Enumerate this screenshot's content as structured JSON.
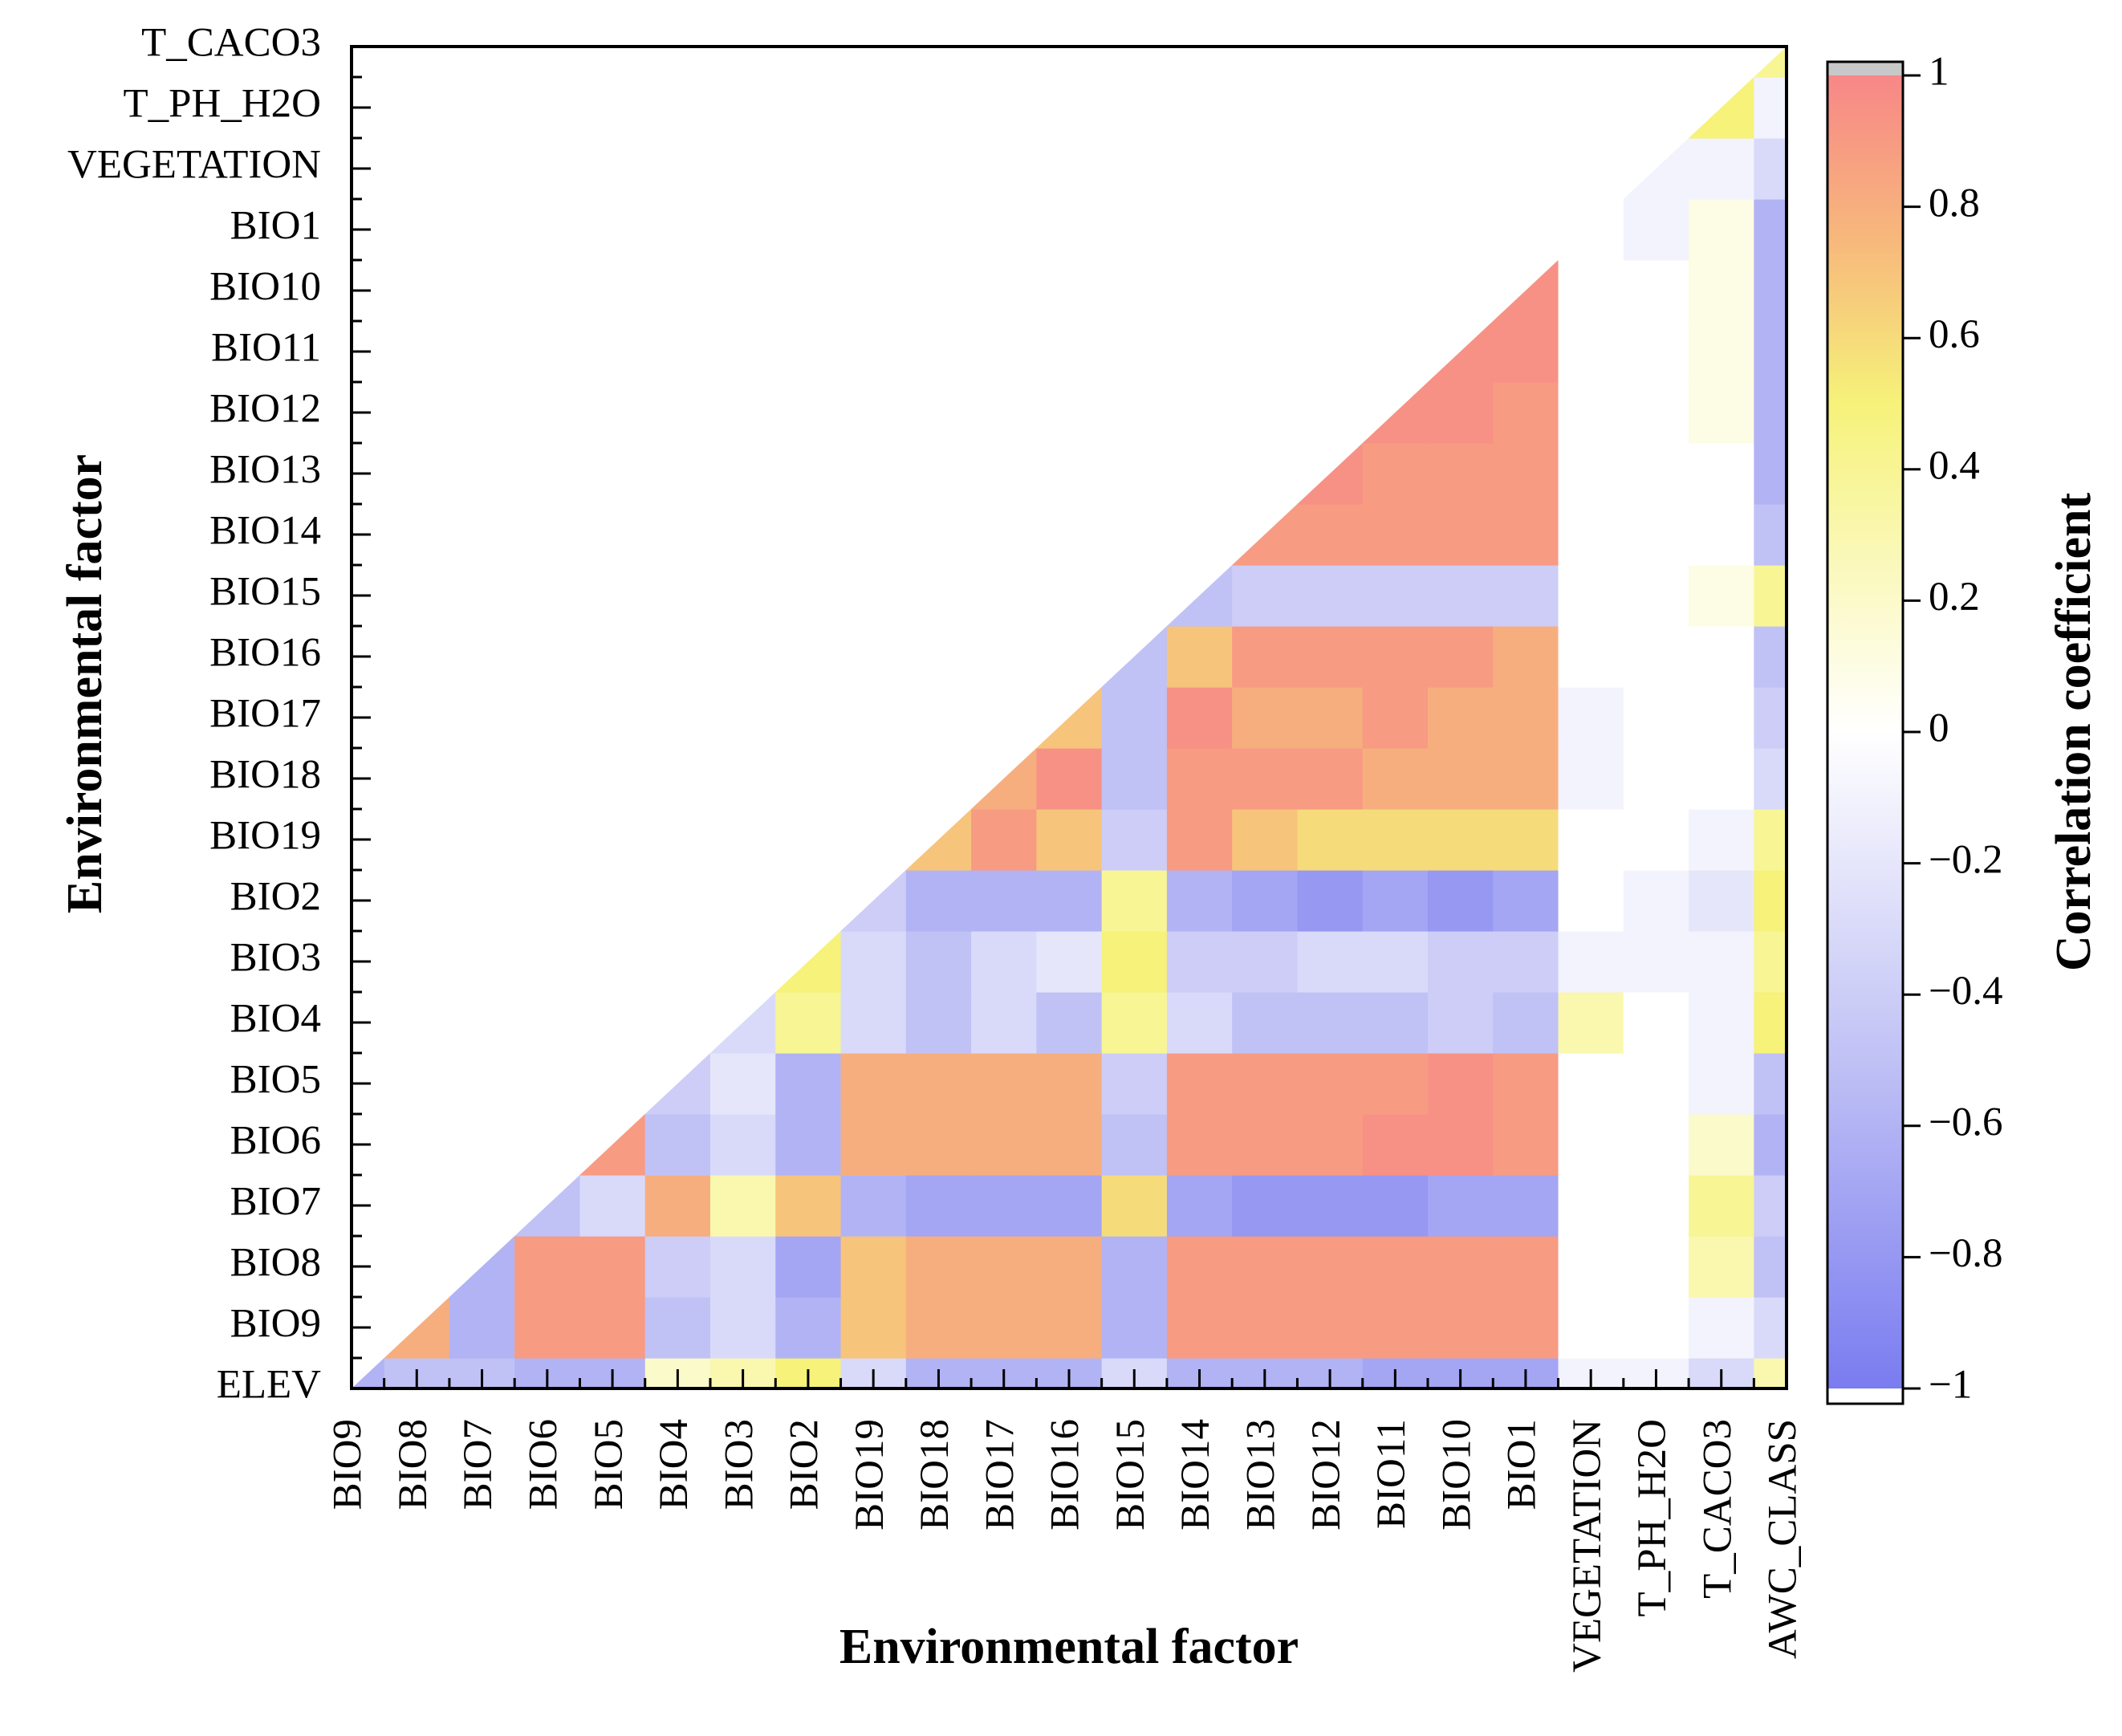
{
  "chart_data": {
    "type": "contour",
    "x_label": "Environmental factor",
    "y_label": "Environmental factor",
    "colorbar_label": "Correlation coefficient",
    "categories": [
      "BIO9",
      "BIO8",
      "BIO7",
      "BIO6",
      "BIO5",
      "BIO4",
      "BIO3",
      "BIO2",
      "BIO19",
      "BIO18",
      "BIO17",
      "BIO16",
      "BIO15",
      "BIO14",
      "BIO13",
      "BIO12",
      "BIO11",
      "BIO10",
      "BIO1",
      "VEGETATION",
      "T_PH_H2O",
      "T_CACO3",
      "AWC_CLASS"
    ],
    "y_categories": [
      "ELEV",
      "BIO9",
      "BIO8",
      "BIO7",
      "BIO6",
      "BIO5",
      "BIO4",
      "BIO3",
      "BIO2",
      "BIO19",
      "BIO18",
      "BIO17",
      "BIO16",
      "BIO15",
      "BIO14",
      "BIO13",
      "BIO12",
      "BIO11",
      "BIO10",
      "BIO1",
      "VEGETATION",
      "T_PH_H2O",
      "T_CACO3"
    ],
    "values": [
      [
        -0.6,
        -0.5,
        -0.5,
        -0.6,
        -0.6,
        0.2,
        0.3,
        0.5,
        -0.3,
        -0.6,
        -0.6,
        -0.6,
        -0.3,
        -0.6,
        -0.6,
        -0.6,
        -0.7,
        -0.7,
        -0.7,
        -0.1,
        -0.1,
        -0.3,
        0.3
      ],
      [
        null,
        0.8,
        -0.6,
        0.9,
        0.9,
        -0.5,
        -0.3,
        -0.6,
        0.7,
        0.8,
        0.8,
        0.8,
        -0.6,
        0.9,
        0.9,
        0.9,
        0.9,
        0.9,
        0.9,
        0,
        0,
        -0.1,
        -0.3
      ],
      [
        null,
        null,
        -0.6,
        0.9,
        0.9,
        -0.4,
        -0.3,
        -0.7,
        0.7,
        0.8,
        0.8,
        0.8,
        -0.6,
        0.9,
        0.9,
        0.9,
        0.9,
        0.9,
        0.9,
        0,
        0,
        0.3,
        -0.5
      ],
      [
        null,
        null,
        null,
        -0.5,
        -0.3,
        0.8,
        0.3,
        0.7,
        -0.6,
        -0.7,
        -0.7,
        -0.7,
        0.6,
        -0.7,
        -0.8,
        -0.8,
        -0.8,
        -0.7,
        -0.7,
        0,
        0,
        0.4,
        -0.4
      ],
      [
        null,
        null,
        null,
        null,
        0.9,
        -0.5,
        -0.3,
        -0.6,
        0.8,
        0.8,
        0.8,
        0.8,
        -0.5,
        0.9,
        0.9,
        0.9,
        0.95,
        0.95,
        0.9,
        0,
        0,
        0.2,
        -0.6
      ],
      [
        null,
        null,
        null,
        null,
        null,
        -0.4,
        -0.2,
        -0.6,
        0.8,
        0.8,
        0.8,
        0.8,
        -0.4,
        0.9,
        0.9,
        0.9,
        0.9,
        0.95,
        0.9,
        0,
        0,
        -0.1,
        -0.5
      ],
      [
        null,
        null,
        null,
        null,
        null,
        null,
        -0.3,
        0.4,
        -0.3,
        -0.5,
        -0.3,
        -0.5,
        0.4,
        -0.3,
        -0.5,
        -0.5,
        -0.5,
        -0.4,
        -0.5,
        0.3,
        0,
        -0.1,
        0.5
      ],
      [
        null,
        null,
        null,
        null,
        null,
        null,
        null,
        0.5,
        -0.3,
        -0.5,
        -0.3,
        -0.2,
        0.5,
        -0.4,
        -0.4,
        -0.3,
        -0.3,
        -0.4,
        -0.4,
        -0.1,
        -0.1,
        -0.1,
        0.4
      ],
      [
        null,
        null,
        null,
        null,
        null,
        null,
        null,
        null,
        -0.4,
        -0.6,
        -0.6,
        -0.6,
        0.4,
        -0.6,
        -0.7,
        -0.8,
        -0.7,
        -0.8,
        -0.7,
        0,
        -0.1,
        -0.2,
        0.5
      ],
      [
        null,
        null,
        null,
        null,
        null,
        null,
        null,
        null,
        null,
        0.7,
        0.9,
        0.7,
        -0.4,
        0.9,
        0.7,
        0.6,
        0.6,
        0.6,
        0.6,
        0,
        0,
        -0.1,
        0.4
      ],
      [
        null,
        null,
        null,
        null,
        null,
        null,
        null,
        null,
        null,
        null,
        0.8,
        0.95,
        -0.5,
        0.9,
        0.9,
        0.9,
        0.8,
        0.8,
        0.8,
        -0.1,
        0,
        0,
        -0.3
      ],
      [
        null,
        null,
        null,
        null,
        null,
        null,
        null,
        null,
        null,
        null,
        null,
        0.7,
        -0.5,
        0.95,
        0.8,
        0.8,
        0.9,
        0.8,
        0.8,
        -0.1,
        0,
        0,
        -0.4
      ],
      [
        null,
        null,
        null,
        null,
        null,
        null,
        null,
        null,
        null,
        null,
        null,
        null,
        -0.5,
        0.7,
        0.9,
        0.9,
        0.9,
        0.9,
        0.8,
        0,
        0,
        0,
        -0.5
      ],
      [
        null,
        null,
        null,
        null,
        null,
        null,
        null,
        null,
        null,
        null,
        null,
        null,
        null,
        -0.5,
        -0.4,
        -0.4,
        -0.4,
        -0.4,
        -0.4,
        0,
        0,
        0.1,
        0.4
      ],
      [
        null,
        null,
        null,
        null,
        null,
        null,
        null,
        null,
        null,
        null,
        null,
        null,
        null,
        null,
        0.9,
        0.9,
        0.9,
        0.9,
        0.9,
        0,
        0,
        0,
        -0.5
      ],
      [
        null,
        null,
        null,
        null,
        null,
        null,
        null,
        null,
        null,
        null,
        null,
        null,
        null,
        null,
        null,
        0.95,
        0.9,
        0.9,
        0.9,
        0,
        0,
        0,
        -0.6
      ],
      [
        null,
        null,
        null,
        null,
        null,
        null,
        null,
        null,
        null,
        null,
        null,
        null,
        null,
        null,
        null,
        null,
        0.95,
        0.95,
        0.9,
        0,
        0,
        0.1,
        -0.6
      ],
      [
        null,
        null,
        null,
        null,
        null,
        null,
        null,
        null,
        null,
        null,
        null,
        null,
        null,
        null,
        null,
        null,
        null,
        0.95,
        0.95,
        0,
        0,
        0.1,
        -0.6
      ],
      [
        null,
        null,
        null,
        null,
        null,
        null,
        null,
        null,
        null,
        null,
        null,
        null,
        null,
        null,
        null,
        null,
        null,
        null,
        0.95,
        0,
        0,
        0.1,
        -0.6
      ],
      [
        null,
        null,
        null,
        null,
        null,
        null,
        null,
        null,
        null,
        null,
        null,
        null,
        null,
        null,
        null,
        null,
        null,
        null,
        null,
        0,
        -0.1,
        0.1,
        -0.6
      ],
      [
        null,
        null,
        null,
        null,
        null,
        null,
        null,
        null,
        null,
        null,
        null,
        null,
        null,
        null,
        null,
        null,
        null,
        null,
        null,
        null,
        -0.1,
        -0.1,
        -0.3
      ],
      [
        null,
        null,
        null,
        null,
        null,
        null,
        null,
        null,
        null,
        null,
        null,
        null,
        null,
        null,
        null,
        null,
        null,
        null,
        null,
        null,
        null,
        0.5,
        -0.1
      ],
      [
        null,
        null,
        null,
        null,
        null,
        null,
        null,
        null,
        null,
        null,
        null,
        null,
        null,
        null,
        null,
        null,
        null,
        null,
        null,
        null,
        null,
        null,
        0.4
      ]
    ],
    "zlim": [
      -1,
      1
    ],
    "zticks": [
      {
        "value": -1,
        "label": "−1"
      },
      {
        "value": -0.8,
        "label": "−0.8"
      },
      {
        "value": -0.6,
        "label": "−0.6"
      },
      {
        "value": -0.4,
        "label": "−0.4"
      },
      {
        "value": -0.2,
        "label": "−0.2"
      },
      0,
      0.2,
      0.4,
      0.6,
      0.8,
      1
    ],
    "colorscale": [
      [
        -1,
        "#7a7cf0"
      ],
      [
        -0.5,
        "#c0c1f5"
      ],
      [
        0,
        "#ffffff"
      ],
      [
        0.5,
        "#f6f27a"
      ],
      [
        0.75,
        "#f7b87c"
      ],
      [
        1,
        "#f78787"
      ]
    ]
  }
}
